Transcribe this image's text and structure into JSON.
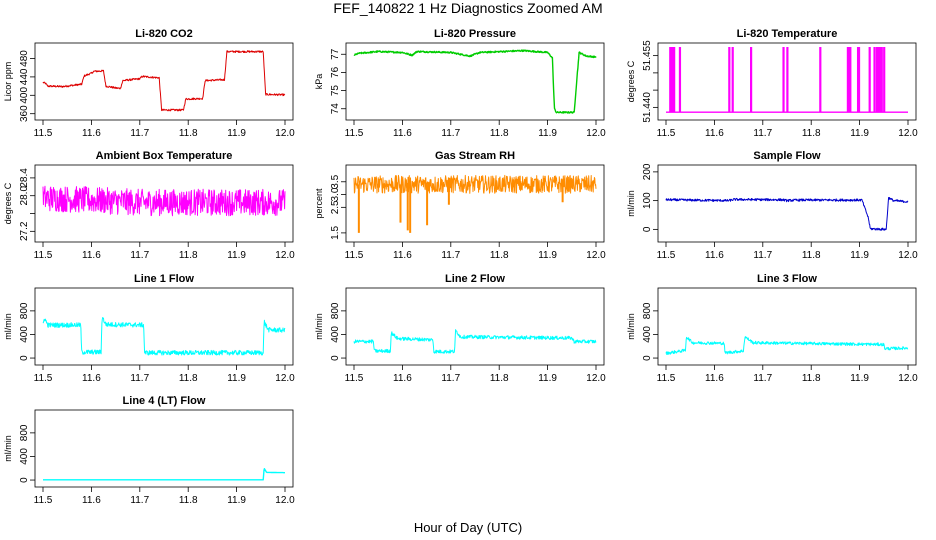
{
  "figure": {
    "title": "FEF_140822  1 Hz Diagnostics Zoomed AM",
    "xlabel": "Hour of Day (UTC)"
  },
  "chart_data": [
    {
      "type": "line",
      "title": "Li-820 CO2",
      "ylabel": "Licor ppm",
      "color": "#dd0000",
      "xlim": [
        11.5,
        12.0
      ],
      "x_ticks": [
        "11.5",
        "11.6",
        "11.7",
        "11.8",
        "11.9",
        "12.0"
      ],
      "ylim": [
        355,
        505
      ],
      "y_ticks": [
        360,
        400,
        440,
        480
      ],
      "noise": 2,
      "spikes": null,
      "series": [
        {
          "x": 11.5,
          "y": 428
        },
        {
          "x": 11.505,
          "y": 426
        },
        {
          "x": 11.51,
          "y": 420
        },
        {
          "x": 11.54,
          "y": 419
        },
        {
          "x": 11.58,
          "y": 424
        },
        {
          "x": 11.585,
          "y": 442
        },
        {
          "x": 11.6,
          "y": 448
        },
        {
          "x": 11.605,
          "y": 452
        },
        {
          "x": 11.625,
          "y": 453
        },
        {
          "x": 11.63,
          "y": 420
        },
        {
          "x": 11.65,
          "y": 416
        },
        {
          "x": 11.66,
          "y": 415
        },
        {
          "x": 11.665,
          "y": 432
        },
        {
          "x": 11.7,
          "y": 436
        },
        {
          "x": 11.705,
          "y": 441
        },
        {
          "x": 11.74,
          "y": 438
        },
        {
          "x": 11.745,
          "y": 368
        },
        {
          "x": 11.79,
          "y": 368
        },
        {
          "x": 11.795,
          "y": 392
        },
        {
          "x": 11.83,
          "y": 393
        },
        {
          "x": 11.835,
          "y": 432
        },
        {
          "x": 11.875,
          "y": 434
        },
        {
          "x": 11.88,
          "y": 495
        },
        {
          "x": 11.955,
          "y": 495
        },
        {
          "x": 11.96,
          "y": 402
        },
        {
          "x": 12.0,
          "y": 401
        }
      ]
    },
    {
      "type": "line",
      "title": "Li-820 Pressure",
      "ylabel": "kPa",
      "color": "#00cc00",
      "xlim": [
        11.5,
        12.0
      ],
      "x_ticks": [
        "11.5",
        "11.6",
        "11.7",
        "11.8",
        "11.9",
        "12.0"
      ],
      "ylim": [
        73.6,
        77.4
      ],
      "y_ticks": [
        74,
        75,
        76,
        77
      ],
      "noise": 0.04,
      "spikes": null,
      "series": [
        {
          "x": 11.5,
          "y": 76.95
        },
        {
          "x": 11.51,
          "y": 77.05
        },
        {
          "x": 11.55,
          "y": 77.15
        },
        {
          "x": 11.6,
          "y": 77.1
        },
        {
          "x": 11.62,
          "y": 76.95
        },
        {
          "x": 11.63,
          "y": 77.15
        },
        {
          "x": 11.7,
          "y": 77.1
        },
        {
          "x": 11.74,
          "y": 76.9
        },
        {
          "x": 11.76,
          "y": 77.1
        },
        {
          "x": 11.85,
          "y": 77.2
        },
        {
          "x": 11.9,
          "y": 77.1
        },
        {
          "x": 11.91,
          "y": 76.8
        },
        {
          "x": 11.914,
          "y": 74.0
        },
        {
          "x": 11.918,
          "y": 73.8
        },
        {
          "x": 11.955,
          "y": 73.8
        },
        {
          "x": 11.965,
          "y": 77.1
        },
        {
          "x": 11.98,
          "y": 76.9
        },
        {
          "x": 12.0,
          "y": 76.85
        }
      ]
    },
    {
      "type": "line",
      "title": "Li-820 Temperature",
      "ylabel": "degrees C",
      "color": "#ff00ff",
      "xlim": [
        11.5,
        12.0
      ],
      "x_ticks": [
        "11.5",
        "11.6",
        "11.7",
        "11.8",
        "11.9",
        "12.0"
      ],
      "ylim": [
        51.4375,
        51.4575
      ],
      "y_ticks": [
        51.44,
        51.445,
        51.45,
        51.455
      ],
      "y_tick_labels": [
        "51.440",
        "",
        "",
        "51.455"
      ],
      "noise": 0,
      "baseline": 51.4386,
      "spike_to": 51.4575,
      "spikes": [
        11.508,
        11.512,
        11.516,
        11.528,
        11.63,
        11.637,
        11.675,
        11.742,
        11.75,
        11.818,
        11.875,
        11.878,
        11.88,
        11.896,
        11.898,
        11.92,
        11.93,
        11.935,
        11.938,
        11.941,
        11.945,
        11.95
      ],
      "series": []
    },
    {
      "type": "line",
      "title": "Ambient Box Temperature",
      "ylabel": "degrees C",
      "color": "#ff00ff",
      "xlim": [
        11.5,
        12.0
      ],
      "x_ticks": [
        "11.5",
        "11.6",
        "11.7",
        "11.8",
        "11.9",
        "12.0"
      ],
      "ylim": [
        27.05,
        28.6
      ],
      "y_ticks": [
        27.2,
        27.6,
        28.0,
        28.4
      ],
      "y_tick_labels": [
        "27.2",
        "",
        "28.0",
        "28.4"
      ],
      "noise": 0.3,
      "spikes": null,
      "series": [
        {
          "x": 11.5,
          "y": 27.95
        },
        {
          "x": 11.6,
          "y": 27.9
        },
        {
          "x": 11.7,
          "y": 27.85
        },
        {
          "x": 11.8,
          "y": 27.85
        },
        {
          "x": 11.9,
          "y": 27.85
        },
        {
          "x": 12.0,
          "y": 27.85
        }
      ]
    },
    {
      "type": "line",
      "title": "Gas Stream RH",
      "ylabel": "percent",
      "color": "#ff8c00",
      "xlim": [
        11.5,
        12.0
      ],
      "x_ticks": [
        "11.5",
        "11.6",
        "11.7",
        "11.8",
        "11.9",
        "12.0"
      ],
      "ylim": [
        1.3,
        4.0
      ],
      "y_ticks": [
        1.5,
        2.5,
        3.0,
        3.5
      ],
      "y_tick_labels": [
        "1.5",
        "2.5",
        "3.0",
        "3.5"
      ],
      "noise": 0.35,
      "dip_points": [
        [
          11.509,
          1.5
        ],
        [
          11.595,
          1.9
        ],
        [
          11.61,
          1.6
        ],
        [
          11.615,
          1.5
        ],
        [
          11.65,
          1.8
        ],
        [
          11.695,
          2.6
        ],
        [
          11.93,
          2.7
        ]
      ],
      "spikes": null,
      "series": [
        {
          "x": 11.5,
          "y": 3.4
        },
        {
          "x": 12.0,
          "y": 3.4
        }
      ]
    },
    {
      "type": "line",
      "title": "Sample Flow",
      "ylabel": "ml/min",
      "color": "#0000cc",
      "xlim": [
        11.5,
        12.0
      ],
      "x_ticks": [
        "11.5",
        "11.6",
        "11.7",
        "11.8",
        "11.9",
        "12.0"
      ],
      "ylim": [
        -30,
        210
      ],
      "y_ticks": [
        0,
        100,
        200
      ],
      "noise": 4,
      "spikes": null,
      "series": [
        {
          "x": 11.5,
          "y": 103
        },
        {
          "x": 11.59,
          "y": 101
        },
        {
          "x": 11.63,
          "y": 100
        },
        {
          "x": 11.64,
          "y": 104
        },
        {
          "x": 11.74,
          "y": 103
        },
        {
          "x": 11.75,
          "y": 100
        },
        {
          "x": 11.77,
          "y": 102
        },
        {
          "x": 11.905,
          "y": 102
        },
        {
          "x": 11.918,
          "y": 40
        },
        {
          "x": 11.922,
          "y": 2
        },
        {
          "x": 11.955,
          "y": 0
        },
        {
          "x": 11.96,
          "y": 110
        },
        {
          "x": 11.97,
          "y": 100
        },
        {
          "x": 12.0,
          "y": 96
        }
      ]
    },
    {
      "type": "line",
      "title": "Line 1 Flow",
      "ylabel": "ml/min",
      "color": "#00ffff",
      "xlim": [
        11.5,
        12.0
      ],
      "x_ticks": [
        "11.5",
        "11.6",
        "11.7",
        "11.8",
        "11.9",
        "12.0"
      ],
      "ylim": [
        -50,
        1120
      ],
      "y_ticks": [
        0,
        400,
        800
      ],
      "y_tick_labels": [
        "0",
        "400",
        "800"
      ],
      "noise": 40,
      "spikes": null,
      "series": [
        {
          "x": 11.5,
          "y": 560
        },
        {
          "x": 11.503,
          "y": 680
        },
        {
          "x": 11.51,
          "y": 560
        },
        {
          "x": 11.578,
          "y": 560
        },
        {
          "x": 11.58,
          "y": 100
        },
        {
          "x": 11.62,
          "y": 100
        },
        {
          "x": 11.622,
          "y": 700
        },
        {
          "x": 11.63,
          "y": 570
        },
        {
          "x": 11.708,
          "y": 560
        },
        {
          "x": 11.71,
          "y": 90
        },
        {
          "x": 11.955,
          "y": 90
        },
        {
          "x": 11.957,
          "y": 620
        },
        {
          "x": 11.965,
          "y": 480
        },
        {
          "x": 12.0,
          "y": 470
        }
      ]
    },
    {
      "type": "line",
      "title": "Line 2 Flow",
      "ylabel": "ml/min",
      "color": "#00ffff",
      "xlim": [
        11.5,
        12.0
      ],
      "x_ticks": [
        "11.5",
        "11.6",
        "11.7",
        "11.8",
        "11.9",
        "12.0"
      ],
      "ylim": [
        -50,
        1120
      ],
      "y_ticks": [
        0,
        400,
        800
      ],
      "noise": 30,
      "spikes": null,
      "series": [
        {
          "x": 11.5,
          "y": 280
        },
        {
          "x": 11.54,
          "y": 280
        },
        {
          "x": 11.542,
          "y": 120
        },
        {
          "x": 11.575,
          "y": 120
        },
        {
          "x": 11.577,
          "y": 430
        },
        {
          "x": 11.59,
          "y": 330
        },
        {
          "x": 11.663,
          "y": 310
        },
        {
          "x": 11.665,
          "y": 110
        },
        {
          "x": 11.708,
          "y": 110
        },
        {
          "x": 11.71,
          "y": 470
        },
        {
          "x": 11.72,
          "y": 360
        },
        {
          "x": 11.95,
          "y": 340
        },
        {
          "x": 11.955,
          "y": 280
        },
        {
          "x": 12.0,
          "y": 280
        }
      ]
    },
    {
      "type": "line",
      "title": "Line 3 Flow",
      "ylabel": "ml/min",
      "color": "#00ffff",
      "xlim": [
        11.5,
        12.0
      ],
      "x_ticks": [
        "11.5",
        "11.6",
        "11.7",
        "11.8",
        "11.9",
        "12.0"
      ],
      "ylim": [
        -50,
        1120
      ],
      "y_ticks": [
        0,
        400,
        800
      ],
      "noise": 25,
      "spikes": null,
      "series": [
        {
          "x": 11.5,
          "y": 80
        },
        {
          "x": 11.54,
          "y": 130
        },
        {
          "x": 11.542,
          "y": 360
        },
        {
          "x": 11.555,
          "y": 260
        },
        {
          "x": 11.62,
          "y": 250
        },
        {
          "x": 11.622,
          "y": 90
        },
        {
          "x": 11.66,
          "y": 120
        },
        {
          "x": 11.663,
          "y": 360
        },
        {
          "x": 11.68,
          "y": 260
        },
        {
          "x": 11.95,
          "y": 230
        },
        {
          "x": 11.952,
          "y": 160
        },
        {
          "x": 12.0,
          "y": 170
        }
      ]
    },
    {
      "type": "line",
      "title": "Line 4 (LT) Flow",
      "ylabel": "ml/min",
      "color": "#00ffff",
      "xlim": [
        11.5,
        12.0
      ],
      "x_ticks": [
        "11.5",
        "11.6",
        "11.7",
        "11.8",
        "11.9",
        "12.0"
      ],
      "ylim": [
        -50,
        1120
      ],
      "y_ticks": [
        0,
        400,
        800
      ],
      "noise": 0,
      "spikes": null,
      "series": [
        {
          "x": 11.5,
          "y": 5
        },
        {
          "x": 11.955,
          "y": 5
        },
        {
          "x": 11.957,
          "y": 200
        },
        {
          "x": 11.962,
          "y": 130
        },
        {
          "x": 12.0,
          "y": 125
        }
      ]
    }
  ]
}
